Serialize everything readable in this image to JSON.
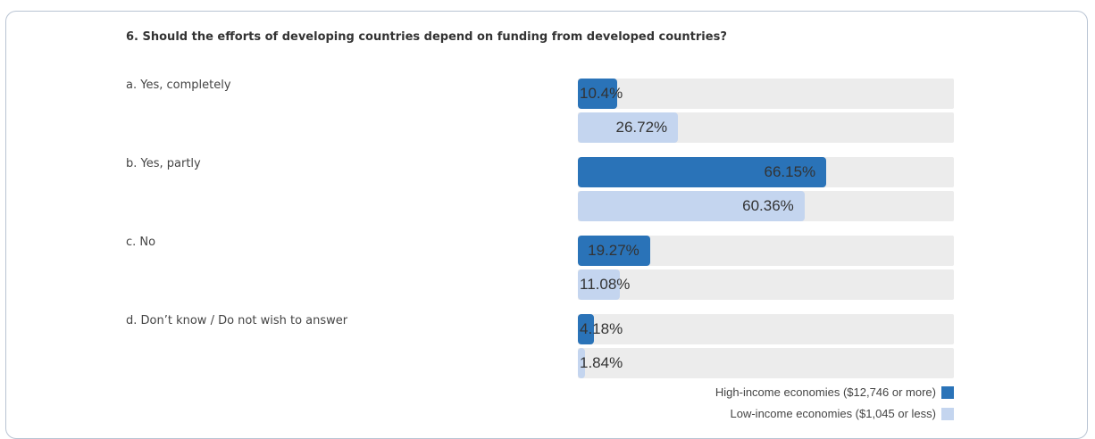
{
  "chart_data": {
    "type": "bar",
    "orientation": "horizontal",
    "title": "6. Should the efforts of developing countries depend on funding from developed countries?",
    "categories": [
      "a. Yes, completely",
      "b. Yes, partly",
      "c. No",
      "d. Don’t know / Do not wish to answer"
    ],
    "series": [
      {
        "name": "High-income economies ($12,746 or more)",
        "values": [
          10.4,
          66.15,
          19.27,
          4.18
        ],
        "labels": [
          "10.4%",
          "66.15%",
          "19.27%",
          "4.18%"
        ],
        "color": "#2a73b8"
      },
      {
        "name": "Low-income economies ($1,045 or less)",
        "values": [
          26.72,
          60.36,
          11.08,
          1.84
        ],
        "labels": [
          "26.72%",
          "60.36%",
          "11.08%",
          "1.84%"
        ],
        "color": "#c4d5ef"
      }
    ],
    "xlim": [
      0,
      100
    ],
    "grid": false,
    "legend_position": "bottom-right"
  }
}
